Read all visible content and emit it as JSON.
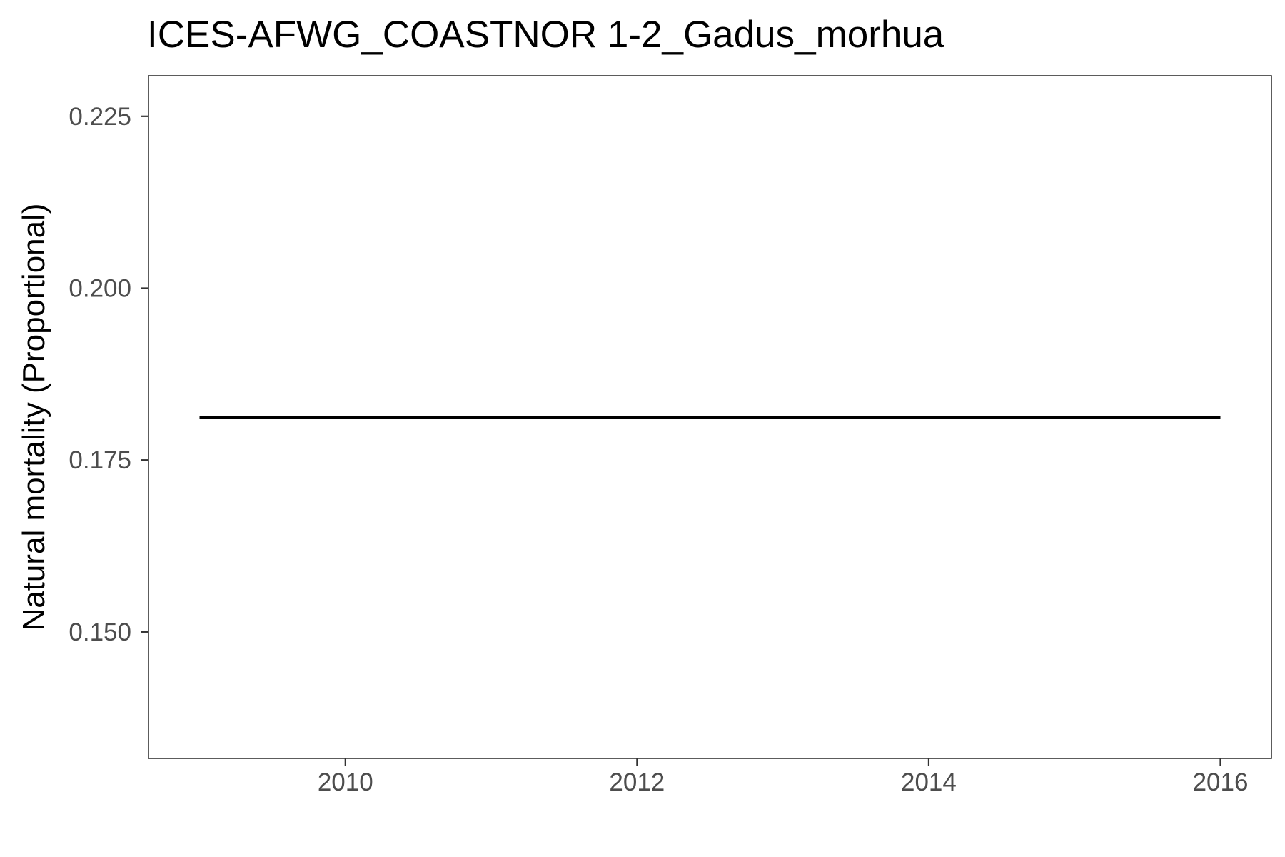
{
  "chart_data": {
    "type": "line",
    "title": "ICES-AFWG_COASTNOR 1-2_Gadus_morhua",
    "xlabel": "",
    "ylabel": "Natural mortality (Proportional)",
    "x": [
      2009,
      2010,
      2011,
      2012,
      2013,
      2014,
      2015,
      2016
    ],
    "series": [
      {
        "values": [
          0.1812,
          0.1812,
          0.1812,
          0.1812,
          0.1812,
          0.1812,
          0.1812,
          0.1812
        ],
        "color": "#000000"
      }
    ],
    "xlim": [
      2008.65,
      2016.35
    ],
    "ylim": [
      0.1316,
      0.2309
    ],
    "x_ticks": [
      2010,
      2012,
      2014,
      2016
    ],
    "x_tick_labels": [
      "2010",
      "2012",
      "2014",
      "2016"
    ],
    "y_ticks": [
      0.15,
      0.175,
      0.2,
      0.225
    ],
    "y_tick_labels": [
      "0.150",
      "0.175",
      "0.200",
      "0.225"
    ],
    "grid": false,
    "legend": "none"
  }
}
